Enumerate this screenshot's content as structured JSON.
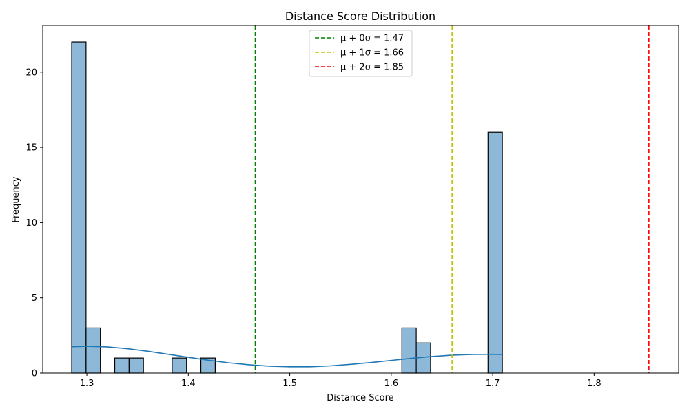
{
  "chart_data": {
    "type": "bar",
    "title": "Distance Score Distribution",
    "xlabel": "Distance Score",
    "ylabel": "Frequency",
    "xlim": [
      1.2565,
      1.8833
    ],
    "ylim": [
      0,
      23.1
    ],
    "x_ticks": [
      1.3,
      1.4,
      1.5,
      1.6,
      1.7,
      1.8
    ],
    "y_ticks": [
      0,
      5,
      10,
      15,
      20
    ],
    "bin_width": 0.01415,
    "bins": [
      {
        "x0": 1.28504,
        "count": 22
      },
      {
        "x0": 1.29919,
        "count": 3
      },
      {
        "x0": 1.32749,
        "count": 1
      },
      {
        "x0": 1.34164,
        "count": 1
      },
      {
        "x0": 1.38409,
        "count": 1
      },
      {
        "x0": 1.41239,
        "count": 1
      },
      {
        "x0": 1.61049,
        "count": 3
      },
      {
        "x0": 1.62464,
        "count": 2
      },
      {
        "x0": 1.69539,
        "count": 16
      }
    ],
    "kde": {
      "name": "",
      "x": [
        1.285,
        1.3,
        1.32,
        1.34,
        1.36,
        1.38,
        1.4,
        1.42,
        1.44,
        1.46,
        1.48,
        1.5,
        1.52,
        1.54,
        1.56,
        1.58,
        1.6,
        1.62,
        1.64,
        1.66,
        1.68,
        1.7,
        1.71
      ],
      "y": [
        1.75,
        1.78,
        1.74,
        1.62,
        1.45,
        1.25,
        1.05,
        0.85,
        0.68,
        0.55,
        0.46,
        0.42,
        0.42,
        0.48,
        0.58,
        0.7,
        0.84,
        0.98,
        1.1,
        1.19,
        1.24,
        1.25,
        1.23
      ]
    },
    "reference_lines": [
      {
        "x": 1.466,
        "label": "μ + 0σ = 1.47",
        "color": "#008000"
      },
      {
        "x": 1.66,
        "label": "μ + 1σ = 1.66",
        "color": "#bfbf00"
      },
      {
        "x": 1.854,
        "label": "μ + 2σ = 1.85",
        "color": "#ff0000"
      }
    ],
    "legend_position": "top-center",
    "colors": {
      "bar_fill": "#8db8d8",
      "bar_edge": "#000000",
      "kde_line": "#1f77b4"
    }
  }
}
